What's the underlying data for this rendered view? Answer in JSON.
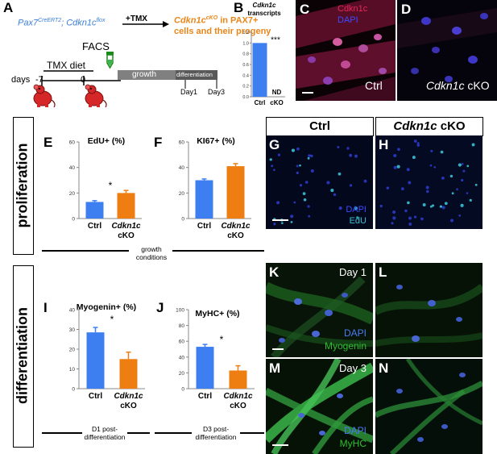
{
  "colors": {
    "ctrl_bar": "#3d7ff0",
    "cko_bar": "#ee7e12",
    "orange_text": "#e9861a",
    "blue_text": "#3a7fd5",
    "growth_bar": "#808080",
    "diff_bar": "#595959",
    "mouse": "#d62728",
    "cdkn1c_red": "#e6265a",
    "dapi_blue": "#3a4cff",
    "edu_cyan": "#39c1d6",
    "myogenin_green": "#2fbf2f"
  },
  "panel_labels": {
    "A": "A",
    "B": "B",
    "C": "C",
    "D": "D",
    "E": "E",
    "F": "F",
    "G": "G",
    "H": "H",
    "I": "I",
    "J": "J",
    "K": "K",
    "L": "L",
    "M": "M",
    "N": "N"
  },
  "schematic": {
    "genotype_p1": "Pax7",
    "genotype_sup1": "CreERT2",
    "genotype_p2": "; Cdkn1c",
    "genotype_sup2": "flox",
    "tmx_label": "+TMX",
    "result_p1": "Cdkn1c",
    "result_sup": "cKO",
    "result_p2": " in PAX7+",
    "result_line2": "cells and their progeny",
    "facs": "FACS",
    "tmx_diet": "TMX diet",
    "days": "days",
    "day_minus7": "-7",
    "day_0": "0",
    "growth": "growth",
    "differentiation": "differentiation",
    "day1": "Day1",
    "day3": "Day3"
  },
  "section_labels": {
    "proliferation": "proliferation",
    "differentiation": "differentiation"
  },
  "conditions": {
    "growth": [
      "growth",
      "conditions"
    ],
    "d1": [
      "D1 post-",
      "differentiation"
    ],
    "d3": [
      "D3 post-",
      "differentiation"
    ]
  },
  "image_labels": {
    "ctrl_header": "Ctrl",
    "cko_header_gene": "Cdkn1c",
    "cko_header_suffix": " cKO",
    "c_cdkn1c": "Cdkn1c",
    "c_dapi": "DAPI",
    "c_ctrl": "Ctrl",
    "d_gene": "Cdkn1c",
    "d_suffix": " cKO",
    "g_dapi": "DAPI",
    "g_edu": "EdU",
    "k_day": "Day 1",
    "k_dapi": "DAPI",
    "k_myogenin": "Myogenin",
    "m_day": "Day 3",
    "m_dapi": "DAPI",
    "m_myhc": "MyHC"
  },
  "chart_data": [
    {
      "id": "B",
      "type": "bar",
      "title": [
        "Cdkn1c",
        "transcripts"
      ],
      "categories": [
        "Ctrl",
        "cKO"
      ],
      "values": [
        1.0,
        null
      ],
      "bar_labels": [
        "",
        "ND"
      ],
      "significance": "***",
      "ylim": [
        0,
        1.2
      ],
      "yticks": [
        "0.0",
        "0.2",
        "0.4",
        "0.6",
        "0.8",
        "1.0",
        "1.2"
      ],
      "ytick_values": [
        0,
        0.2,
        0.4,
        0.6,
        0.8,
        1.0,
        1.2
      ]
    },
    {
      "id": "E",
      "type": "bar",
      "title": "EdU+ (%)",
      "categories": [
        "Ctrl",
        "Cdkn1c cKO"
      ],
      "values": [
        13,
        20
      ],
      "errors": [
        1,
        2
      ],
      "significance": "*",
      "ylim": [
        0,
        60
      ],
      "yticks": [
        "0",
        "20",
        "40",
        "60"
      ],
      "ytick_values": [
        0,
        20,
        40,
        60
      ]
    },
    {
      "id": "F",
      "type": "bar",
      "title": "KI67+ (%)",
      "categories": [
        "Ctrl",
        "Cdkn1c cKO"
      ],
      "values": [
        30,
        41
      ],
      "errors": [
        1,
        2
      ],
      "significance": "",
      "ylim": [
        0,
        60
      ],
      "yticks": [
        "0",
        "20",
        "40",
        "60"
      ],
      "ytick_values": [
        0,
        20,
        40,
        60
      ]
    },
    {
      "id": "I",
      "type": "bar",
      "title": "Myogenin+ (%)",
      "categories": [
        "Ctrl",
        "Cdkn1c cKO"
      ],
      "values": [
        28.5,
        15
      ],
      "errors": [
        2.5,
        3.5
      ],
      "significance": "*",
      "ylim": [
        0,
        40
      ],
      "yticks": [
        "0",
        "10",
        "20",
        "30",
        "40"
      ],
      "ytick_values": [
        0,
        10,
        20,
        30,
        40
      ]
    },
    {
      "id": "J",
      "type": "bar",
      "title": "MyHC+ (%)",
      "categories": [
        "Ctrl",
        "Cdkn1c cKO"
      ],
      "values": [
        53,
        23
      ],
      "errors": [
        3,
        6
      ],
      "significance": "*",
      "ylim": [
        0,
        100
      ],
      "yticks": [
        "0",
        "20",
        "40",
        "60",
        "80",
        "100"
      ],
      "ytick_values": [
        0,
        20,
        40,
        60,
        80,
        100
      ]
    }
  ]
}
